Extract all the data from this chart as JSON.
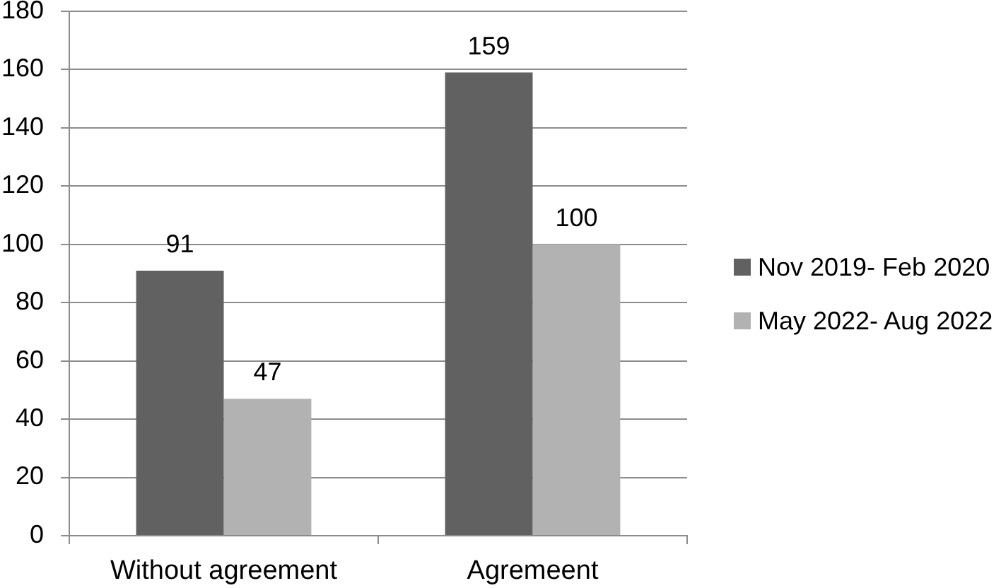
{
  "chart_data": {
    "type": "bar",
    "categories": [
      "Without agreement",
      "Agremeent"
    ],
    "series": [
      {
        "name": "Nov 2019- Feb 2020",
        "color": "#616161",
        "values": [
          91,
          159
        ]
      },
      {
        "name": "May 2022- Aug 2022",
        "color": "#b2b2b2",
        "values": [
          47,
          100
        ]
      }
    ],
    "ylim": [
      0,
      180
    ],
    "yticks": [
      0,
      20,
      40,
      60,
      80,
      100,
      120,
      140,
      160,
      180
    ],
    "grid": "y",
    "legend": "right",
    "data_labels": true
  }
}
